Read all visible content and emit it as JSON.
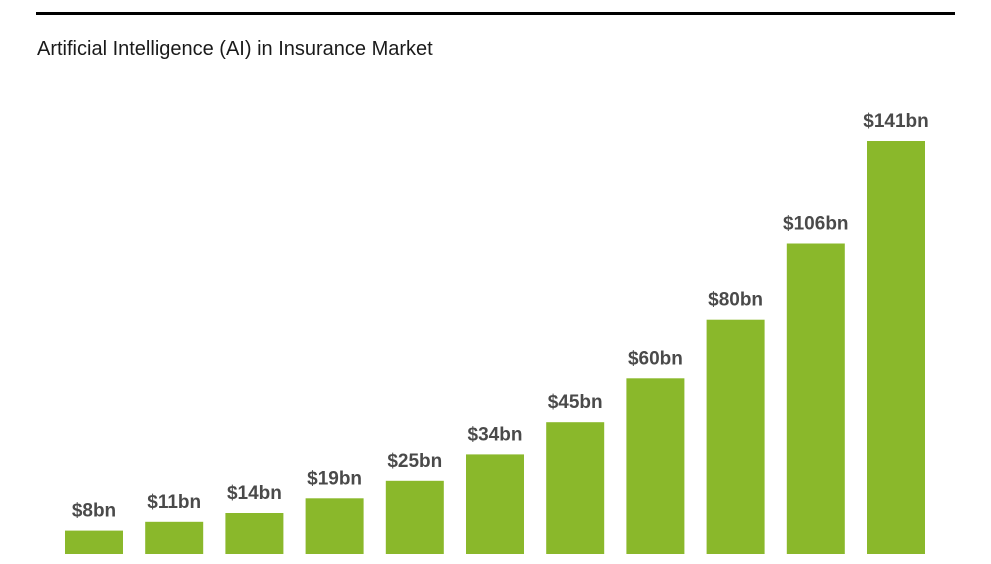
{
  "title": "Artificial Intelligence (AI) in Insurance Market",
  "colors": {
    "bar": "#8ab82b",
    "label": "#4a4a4a",
    "rule": "#000000"
  },
  "chart_data": {
    "type": "bar",
    "title": "Artificial Intelligence (AI) in Insurance Market",
    "categories": [],
    "values": [
      8,
      11,
      14,
      19,
      25,
      34,
      45,
      60,
      80,
      106,
      141
    ],
    "labels": [
      "$8bn",
      "$11bn",
      "$14bn",
      "$19bn",
      "$25bn",
      "$34bn",
      "$45bn",
      "$60bn",
      "$80bn",
      "$106bn",
      "$141bn"
    ],
    "unit": "bn",
    "xlabel": "",
    "ylabel": "",
    "ylim": [
      0,
      141
    ],
    "grid": false,
    "legend": "none"
  }
}
